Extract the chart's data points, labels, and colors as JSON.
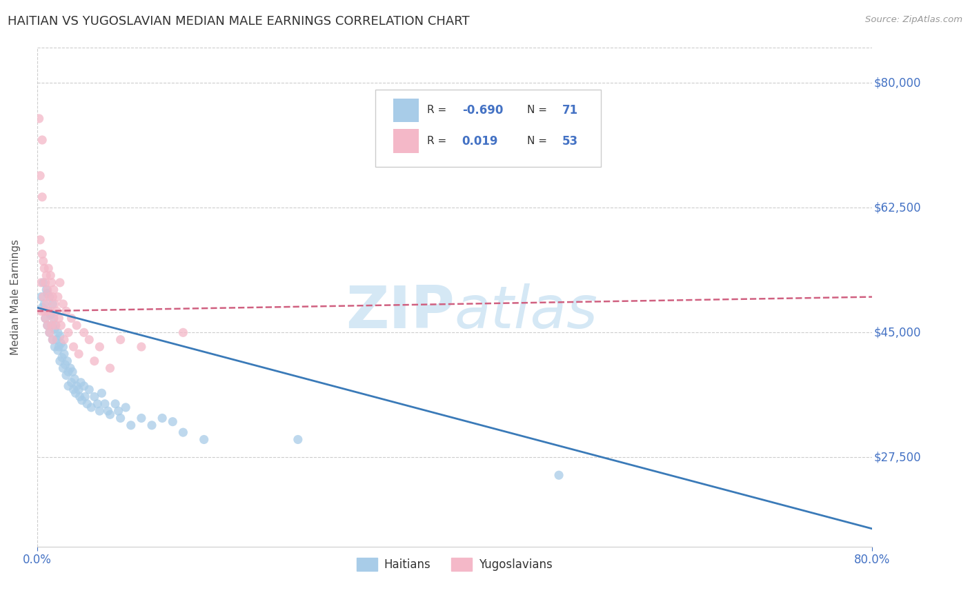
{
  "title": "HAITIAN VS YUGOSLAVIAN MEDIAN MALE EARNINGS CORRELATION CHART",
  "source": "Source: ZipAtlas.com",
  "ylabel": "Median Male Earnings",
  "xlim": [
    0.0,
    0.8
  ],
  "ylim": [
    15000,
    85000
  ],
  "yticks": [
    27500,
    45000,
    62500,
    80000
  ],
  "ytick_labels": [
    "$27,500",
    "$45,000",
    "$62,500",
    "$80,000"
  ],
  "xticks": [
    0.0,
    0.8
  ],
  "xtick_labels": [
    "0.0%",
    "80.0%"
  ],
  "haitian_color": "#a8cce8",
  "yugoslavian_color": "#f4b8c8",
  "haitian_line_color": "#3a7ab8",
  "yugoslavian_line_color": "#d06080",
  "watermark_color": "#d5e8f5",
  "background_color": "#ffffff",
  "grid_color": "#cccccc",
  "blue_trend_x": [
    0.0,
    0.8
  ],
  "blue_trend_y": [
    48500,
    17500
  ],
  "pink_trend_x": [
    0.0,
    0.8
  ],
  "pink_trend_y": [
    48000,
    50000
  ],
  "haitian_points": [
    [
      0.004,
      50000
    ],
    [
      0.005,
      48500
    ],
    [
      0.006,
      52000
    ],
    [
      0.007,
      49000
    ],
    [
      0.008,
      47000
    ],
    [
      0.009,
      51000
    ],
    [
      0.01,
      50500
    ],
    [
      0.01,
      46000
    ],
    [
      0.011,
      48000
    ],
    [
      0.012,
      50000
    ],
    [
      0.012,
      45000
    ],
    [
      0.013,
      47500
    ],
    [
      0.014,
      46000
    ],
    [
      0.015,
      49000
    ],
    [
      0.015,
      44000
    ],
    [
      0.016,
      47000
    ],
    [
      0.017,
      45500
    ],
    [
      0.017,
      43000
    ],
    [
      0.018,
      46000
    ],
    [
      0.019,
      44000
    ],
    [
      0.02,
      45000
    ],
    [
      0.02,
      42500
    ],
    [
      0.021,
      43000
    ],
    [
      0.022,
      41000
    ],
    [
      0.022,
      44500
    ],
    [
      0.023,
      43500
    ],
    [
      0.024,
      41500
    ],
    [
      0.025,
      43000
    ],
    [
      0.025,
      40000
    ],
    [
      0.026,
      42000
    ],
    [
      0.027,
      40500
    ],
    [
      0.028,
      39000
    ],
    [
      0.029,
      41000
    ],
    [
      0.03,
      39500
    ],
    [
      0.03,
      37500
    ],
    [
      0.032,
      40000
    ],
    [
      0.033,
      38000
    ],
    [
      0.034,
      39500
    ],
    [
      0.035,
      37000
    ],
    [
      0.036,
      38500
    ],
    [
      0.037,
      36500
    ],
    [
      0.038,
      37500
    ],
    [
      0.04,
      37000
    ],
    [
      0.041,
      36000
    ],
    [
      0.042,
      38000
    ],
    [
      0.043,
      35500
    ],
    [
      0.045,
      37500
    ],
    [
      0.046,
      36000
    ],
    [
      0.048,
      35000
    ],
    [
      0.05,
      37000
    ],
    [
      0.052,
      34500
    ],
    [
      0.055,
      36000
    ],
    [
      0.058,
      35000
    ],
    [
      0.06,
      34000
    ],
    [
      0.062,
      36500
    ],
    [
      0.065,
      35000
    ],
    [
      0.068,
      34000
    ],
    [
      0.07,
      33500
    ],
    [
      0.075,
      35000
    ],
    [
      0.078,
      34000
    ],
    [
      0.08,
      33000
    ],
    [
      0.085,
      34500
    ],
    [
      0.09,
      32000
    ],
    [
      0.1,
      33000
    ],
    [
      0.11,
      32000
    ],
    [
      0.12,
      33000
    ],
    [
      0.13,
      32500
    ],
    [
      0.14,
      31000
    ],
    [
      0.16,
      30000
    ],
    [
      0.25,
      30000
    ],
    [
      0.5,
      25000
    ]
  ],
  "yugoslavian_points": [
    [
      0.002,
      75000
    ],
    [
      0.003,
      67000
    ],
    [
      0.003,
      58000
    ],
    [
      0.004,
      52000
    ],
    [
      0.004,
      48000
    ],
    [
      0.005,
      72000
    ],
    [
      0.005,
      64000
    ],
    [
      0.005,
      56000
    ],
    [
      0.006,
      55000
    ],
    [
      0.006,
      50000
    ],
    [
      0.007,
      54000
    ],
    [
      0.007,
      48000
    ],
    [
      0.008,
      52000
    ],
    [
      0.008,
      47000
    ],
    [
      0.009,
      53000
    ],
    [
      0.009,
      49000
    ],
    [
      0.01,
      51000
    ],
    [
      0.01,
      46000
    ],
    [
      0.011,
      54000
    ],
    [
      0.011,
      48000
    ],
    [
      0.012,
      50000
    ],
    [
      0.012,
      45000
    ],
    [
      0.013,
      53000
    ],
    [
      0.013,
      48000
    ],
    [
      0.014,
      52000
    ],
    [
      0.014,
      46000
    ],
    [
      0.015,
      50000
    ],
    [
      0.015,
      44000
    ],
    [
      0.016,
      51000
    ],
    [
      0.016,
      47000
    ],
    [
      0.017,
      49000
    ],
    [
      0.018,
      46000
    ],
    [
      0.019,
      48000
    ],
    [
      0.02,
      50000
    ],
    [
      0.021,
      47000
    ],
    [
      0.022,
      52000
    ],
    [
      0.023,
      46000
    ],
    [
      0.025,
      49000
    ],
    [
      0.026,
      44000
    ],
    [
      0.028,
      48000
    ],
    [
      0.03,
      45000
    ],
    [
      0.033,
      47000
    ],
    [
      0.035,
      43000
    ],
    [
      0.038,
      46000
    ],
    [
      0.04,
      42000
    ],
    [
      0.045,
      45000
    ],
    [
      0.05,
      44000
    ],
    [
      0.055,
      41000
    ],
    [
      0.06,
      43000
    ],
    [
      0.07,
      40000
    ],
    [
      0.08,
      44000
    ],
    [
      0.1,
      43000
    ],
    [
      0.14,
      45000
    ]
  ]
}
